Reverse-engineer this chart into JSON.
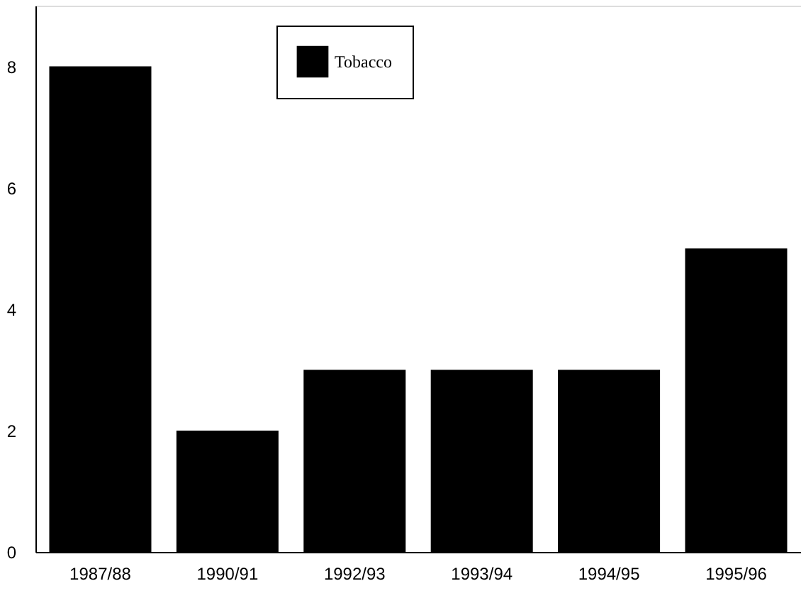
{
  "chart_data": {
    "type": "bar",
    "categories": [
      "1987/88",
      "1990/91",
      "1992/93",
      "1993/94",
      "1994/95",
      "1995/96"
    ],
    "series": [
      {
        "name": "Tobacco",
        "color": "#000000",
        "values": [
          8,
          2,
          3,
          3,
          3,
          5
        ]
      }
    ],
    "ylim": [
      0,
      9
    ],
    "yticks": [
      0,
      2,
      4,
      6,
      8
    ],
    "grid": false,
    "legend": "top"
  }
}
